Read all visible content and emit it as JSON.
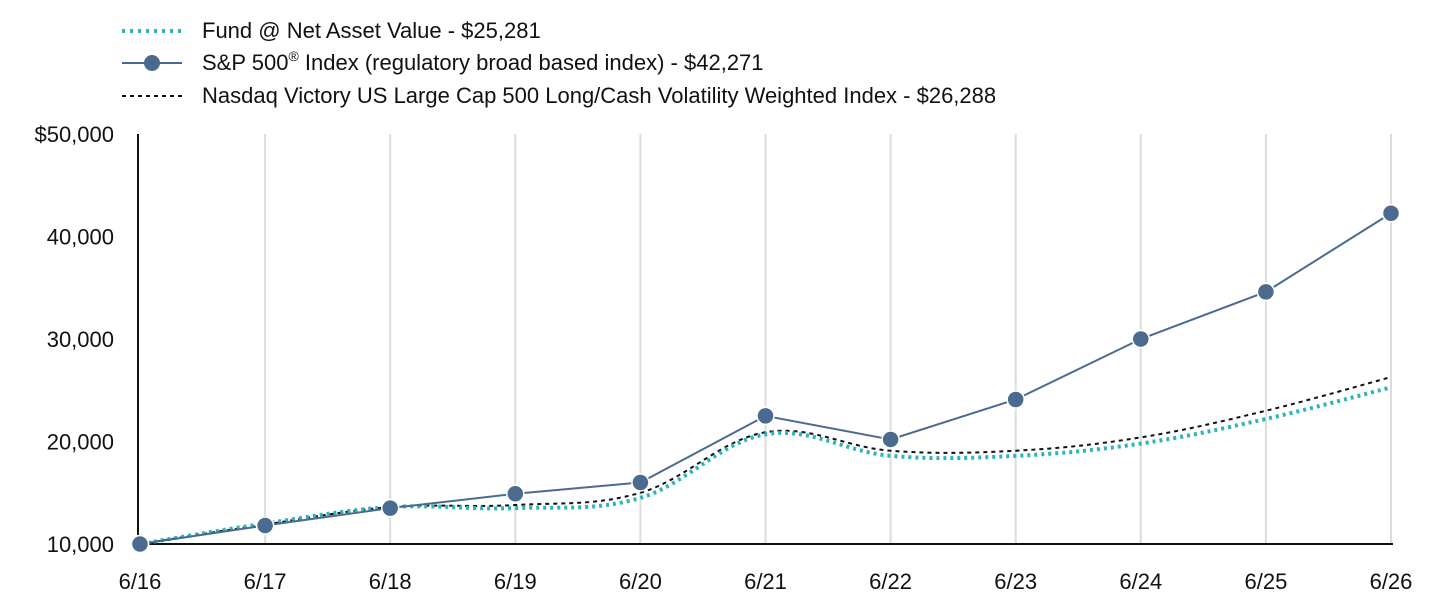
{
  "chart_data": {
    "type": "line",
    "title": "",
    "xlabel": "",
    "ylabel": "",
    "categories": [
      "6/16",
      "6/17",
      "6/18",
      "6/19",
      "6/20",
      "6/21",
      "6/22",
      "6/23",
      "6/24",
      "6/25",
      "6/26"
    ],
    "ylim": [
      10000,
      50000
    ],
    "y_ticks": [
      10000,
      20000,
      30000,
      40000,
      50000
    ],
    "y_tick_labels": [
      "10,000",
      "20,000",
      "30,000",
      "40,000",
      "$50,000"
    ],
    "grid": "vertical",
    "legend_position": "top-left",
    "series": [
      {
        "name": "Fund @ Net Asset Value - $25,281",
        "color": "#2bb5b8",
        "style": "dotted",
        "values": [
          10000,
          12000,
          13600,
          13500,
          14500,
          20700,
          18600,
          18600,
          19800,
          22200,
          25281
        ]
      },
      {
        "name": "S&P 500",
        "name_sup": "®",
        "name_rest": " Index (regulatory broad based index) - $42,271",
        "color": "#4a6b8f",
        "style": "solid-markers",
        "values": [
          10000,
          11800,
          13500,
          14900,
          16000,
          22500,
          20200,
          24100,
          30000,
          34600,
          42271
        ]
      },
      {
        "name": "Nasdaq Victory US Large Cap 500 Long/Cash Volatility Weighted Index - $26,288",
        "color": "#111111",
        "style": "dashed",
        "values": [
          10000,
          11900,
          13600,
          13800,
          15000,
          20900,
          19100,
          19100,
          20400,
          23000,
          26288
        ]
      }
    ]
  }
}
